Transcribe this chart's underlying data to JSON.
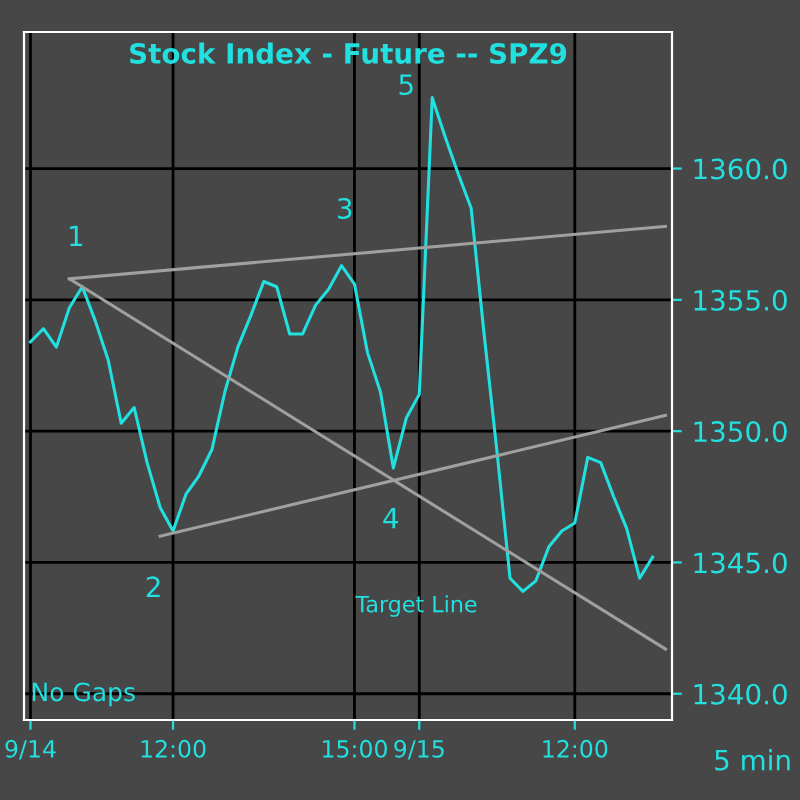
{
  "chart_data": {
    "type": "line",
    "title": "Stock Index - Future -- SPZ9",
    "categories": [
      "9/14",
      null,
      null,
      null,
      null,
      null,
      null,
      null,
      null,
      null,
      null,
      "12:00",
      null,
      null,
      null,
      null,
      null,
      null,
      null,
      null,
      null,
      null,
      null,
      null,
      null,
      "15:00",
      null,
      null,
      null,
      null,
      "9/15",
      null,
      null,
      null,
      null,
      null,
      null,
      null,
      null,
      null,
      null,
      null,
      "12:00",
      null,
      null,
      null,
      null,
      null,
      null,
      null
    ],
    "ylim": [
      1339,
      1365.2
    ],
    "yticks": [
      {
        "value": 1340,
        "label": "1340.0"
      },
      {
        "value": 1345,
        "label": "1345.0"
      },
      {
        "value": 1350,
        "label": "1350.0"
      },
      {
        "value": 1355,
        "label": "1355.0"
      },
      {
        "value": 1360,
        "label": "1360.0"
      }
    ],
    "grid": true,
    "marker": "none",
    "line_style": "solid",
    "series": [
      {
        "color": "#22e0e0",
        "values": [
          1353.4,
          1353.9,
          1353.2,
          1354.7,
          1355.5,
          1354.2,
          1352.7,
          1350.3,
          1350.9,
          1348.8,
          1347.1,
          1346.2,
          1347.6,
          1348.3,
          1349.3,
          1351.5,
          1353.2,
          1354.4,
          1355.7,
          1355.5,
          1353.7,
          1353.7,
          1354.8,
          1355.4,
          1356.3,
          1355.6,
          1353.0,
          1351.5,
          1348.6,
          1350.5,
          1351.4,
          1362.7,
          1361.2,
          1359.8,
          1358.5,
          1353.7,
          1349.2,
          1344.4,
          1343.9,
          1344.3,
          1345.6,
          1346.2,
          1346.5,
          1349.0,
          1348.8,
          1347.5,
          1346.3,
          1344.4,
          1345.2,
          null
        ]
      },
      {
        "color": "#a0a0a0",
        "values": [
          null,
          null,
          null,
          1355.8,
          null,
          null,
          null,
          null,
          null,
          null,
          null,
          null,
          null,
          null,
          null,
          null,
          null,
          null,
          null,
          null,
          null,
          null,
          null,
          null,
          null,
          null,
          null,
          null,
          null,
          null,
          null,
          null,
          null,
          null,
          null,
          null,
          null,
          null,
          null,
          null,
          null,
          null,
          null,
          null,
          null,
          null,
          null,
          null,
          null,
          1357.8
        ]
      },
      {
        "color": "#a0a0a0",
        "values": [
          null,
          null,
          null,
          1355.8,
          null,
          null,
          null,
          null,
          null,
          null,
          null,
          null,
          null,
          null,
          null,
          null,
          null,
          null,
          null,
          null,
          null,
          null,
          null,
          null,
          null,
          null,
          null,
          null,
          null,
          null,
          null,
          null,
          null,
          null,
          null,
          null,
          null,
          null,
          null,
          null,
          null,
          null,
          null,
          null,
          null,
          null,
          null,
          null,
          null,
          1341.7
        ]
      },
      {
        "color": "#a0a0a0",
        "values": [
          null,
          null,
          null,
          null,
          null,
          null,
          null,
          null,
          null,
          null,
          1346.0,
          null,
          null,
          null,
          null,
          null,
          null,
          null,
          null,
          null,
          null,
          null,
          null,
          null,
          null,
          null,
          null,
          null,
          null,
          null,
          null,
          null,
          null,
          null,
          null,
          null,
          null,
          null,
          null,
          null,
          null,
          null,
          null,
          null,
          null,
          null,
          null,
          null,
          null,
          1350.6
        ]
      }
    ],
    "annotations": [
      "1",
      "2",
      "3",
      "4",
      "5",
      "Target Line",
      "No Gaps",
      "5 min"
    ]
  }
}
